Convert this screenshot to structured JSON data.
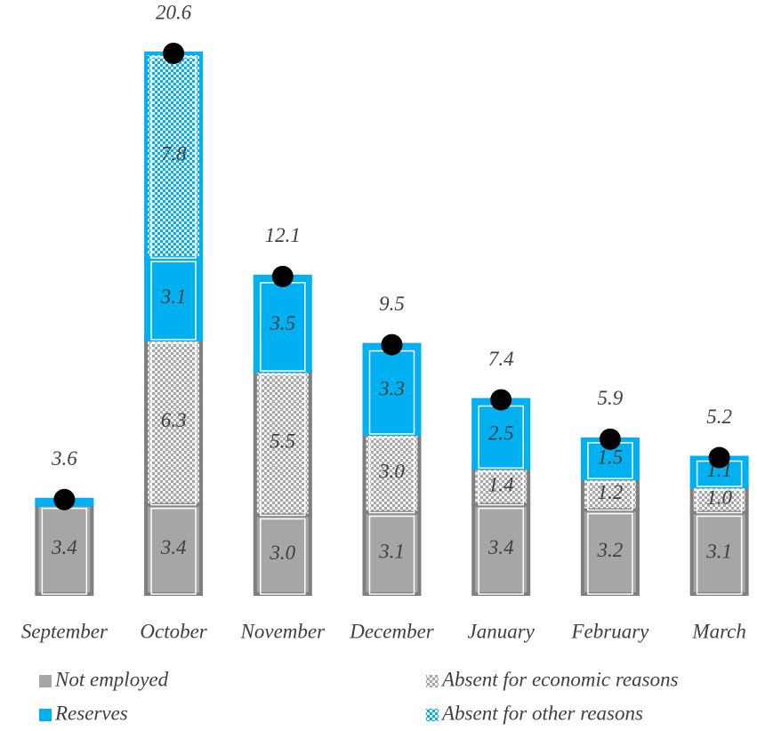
{
  "chart_data": {
    "type": "stacked_bar",
    "categories": [
      "September",
      "October",
      "November",
      "December",
      "January",
      "February",
      "March"
    ],
    "series": [
      {
        "name": "Not employed",
        "color": "#a6a6a6",
        "outline": "#7f7f7f",
        "values": [
          3.4,
          3.4,
          3.0,
          3.1,
          3.4,
          3.2,
          3.1
        ],
        "value_labels": [
          "3.4",
          "3.4",
          "3.0",
          "3.1",
          "3.4",
          "3.2",
          "3.1"
        ]
      },
      {
        "name": "Absent for economic reasons",
        "color": "#a6a6a6",
        "outline": "#7f7f7f",
        "pattern": "crosshatch",
        "values": [
          0,
          6.3,
          5.5,
          3.0,
          1.4,
          1.2,
          1.0
        ],
        "value_labels": [
          null,
          "6.3",
          "5.5",
          "3.0",
          "1.4",
          "1.2",
          "1.0"
        ]
      },
      {
        "name": "Reserves",
        "color": "#00b0f0",
        "outline": "#00b0f0",
        "values": [
          0.2,
          3.1,
          3.5,
          3.3,
          2.5,
          1.5,
          1.1
        ],
        "value_labels": [
          null,
          "3.1",
          "3.5",
          "3.3",
          "2.5",
          "1.5",
          "1.1"
        ]
      },
      {
        "name": "Absent for other reasons",
        "color": "#00b0f0",
        "outline": "#00b0f0",
        "pattern": "crosshatch",
        "values": [
          0,
          7.8,
          0.1,
          0.1,
          0.1,
          0,
          0
        ],
        "value_labels": [
          null,
          "7.8",
          null,
          null,
          null,
          null,
          null
        ]
      }
    ],
    "totals": {
      "color": "#000000",
      "values": [
        3.6,
        20.6,
        12.1,
        9.5,
        7.4,
        5.9,
        5.2
      ]
    },
    "legend": "bottom"
  }
}
